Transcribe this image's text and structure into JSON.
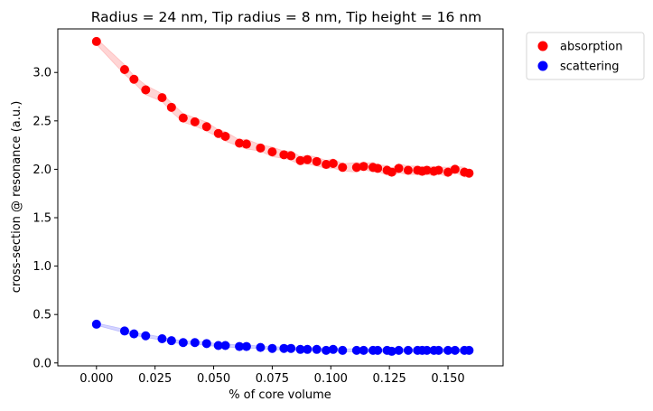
{
  "chart_data": {
    "type": "scatter",
    "title": "Radius = 24 nm, Tip radius = 8 nm, Tip height = 16 nm",
    "xlabel": "% of core volume",
    "ylabel": "cross-section @ resonance (a.u.)",
    "xlim": [
      -0.0165,
      0.1735
    ],
    "ylim": [
      -0.03,
      3.45
    ],
    "xticks": [
      0.0,
      0.025,
      0.05,
      0.075,
      0.1,
      0.125,
      0.15
    ],
    "xtick_labels": [
      "0.000",
      "0.025",
      "0.050",
      "0.075",
      "0.100",
      "0.125",
      "0.150"
    ],
    "yticks": [
      0.0,
      0.5,
      1.0,
      1.5,
      2.0,
      2.5,
      3.0
    ],
    "ytick_labels": [
      "0.0",
      "0.5",
      "1.0",
      "1.5",
      "2.0",
      "2.5",
      "3.0"
    ],
    "grid": false,
    "legend_position": "outside-top-right",
    "series": [
      {
        "name": "absorption",
        "color": "#ff0000",
        "band_color": "#ffb3b3",
        "x": [
          0.0,
          0.012,
          0.016,
          0.021,
          0.028,
          0.032,
          0.037,
          0.042,
          0.047,
          0.052,
          0.055,
          0.061,
          0.064,
          0.07,
          0.075,
          0.08,
          0.083,
          0.087,
          0.09,
          0.094,
          0.098,
          0.101,
          0.105,
          0.111,
          0.114,
          0.118,
          0.12,
          0.124,
          0.126,
          0.129,
          0.133,
          0.137,
          0.139,
          0.141,
          0.144,
          0.146,
          0.15,
          0.153,
          0.157,
          0.159
        ],
        "y": [
          3.32,
          3.03,
          2.93,
          2.82,
          2.74,
          2.64,
          2.53,
          2.49,
          2.44,
          2.37,
          2.34,
          2.27,
          2.26,
          2.22,
          2.18,
          2.15,
          2.14,
          2.09,
          2.1,
          2.08,
          2.05,
          2.06,
          2.02,
          2.02,
          2.03,
          2.02,
          2.01,
          1.99,
          1.97,
          2.01,
          1.99,
          1.99,
          1.98,
          1.99,
          1.98,
          1.99,
          1.97,
          2.0,
          1.97,
          1.96
        ]
      },
      {
        "name": "scattering",
        "color": "#0000ff",
        "band_color": "#b3b3ff",
        "x": [
          0.0,
          0.012,
          0.016,
          0.021,
          0.028,
          0.032,
          0.037,
          0.042,
          0.047,
          0.052,
          0.055,
          0.061,
          0.064,
          0.07,
          0.075,
          0.08,
          0.083,
          0.087,
          0.09,
          0.094,
          0.098,
          0.101,
          0.105,
          0.111,
          0.114,
          0.118,
          0.12,
          0.124,
          0.126,
          0.129,
          0.133,
          0.137,
          0.139,
          0.141,
          0.144,
          0.146,
          0.15,
          0.153,
          0.157,
          0.159
        ],
        "y": [
          0.4,
          0.33,
          0.3,
          0.28,
          0.25,
          0.23,
          0.21,
          0.21,
          0.2,
          0.18,
          0.18,
          0.17,
          0.17,
          0.16,
          0.15,
          0.15,
          0.15,
          0.14,
          0.14,
          0.14,
          0.13,
          0.14,
          0.13,
          0.13,
          0.13,
          0.13,
          0.13,
          0.13,
          0.12,
          0.13,
          0.13,
          0.13,
          0.13,
          0.13,
          0.13,
          0.13,
          0.13,
          0.13,
          0.13,
          0.13
        ]
      }
    ]
  }
}
